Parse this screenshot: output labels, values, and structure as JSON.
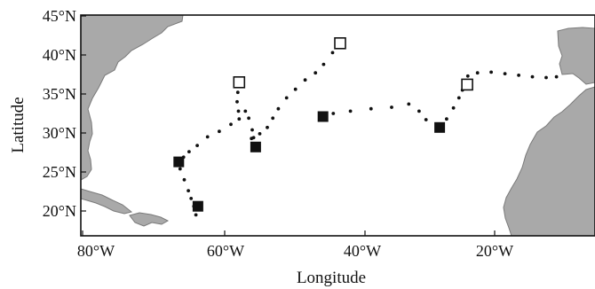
{
  "map": {
    "axes": {
      "x_title": "Longitude",
      "y_title": "Latitude",
      "x_ticks": [
        {
          "value": -80,
          "label": "80°W"
        },
        {
          "value": -60,
          "label": "60°W"
        },
        {
          "value": -40,
          "label": "40°W"
        },
        {
          "value": -20,
          "label": "20°W"
        }
      ],
      "y_ticks": [
        {
          "value": 20,
          "label": "20°N"
        },
        {
          "value": 25,
          "label": "25°N"
        },
        {
          "value": 30,
          "label": "30°N"
        },
        {
          "value": 35,
          "label": "35°N"
        },
        {
          "value": 40,
          "label": "40°N"
        },
        {
          "value": 45,
          "label": "45°N"
        }
      ],
      "lon_range": [
        -80,
        -10
      ],
      "lat_range": [
        17,
        45
      ]
    },
    "colors": {
      "land": "#a9a9a9",
      "coast": "#7a7a7a",
      "sea": "#ffffff",
      "track": "#111111",
      "marker": "#111111"
    },
    "track_a": [
      [
        -63.5,
        19.5
      ],
      [
        -63.8,
        20.6
      ],
      [
        -64.2,
        21.6
      ],
      [
        -64.6,
        22.6
      ],
      [
        -65.2,
        24.0
      ],
      [
        -65.8,
        25.4
      ],
      [
        -66.2,
        26.3
      ],
      [
        -65.3,
        26.9
      ],
      [
        -64.5,
        27.6
      ],
      [
        -63.3,
        28.4
      ],
      [
        -61.8,
        29.5
      ],
      [
        -60.1,
        30.2
      ],
      [
        -58.4,
        31.1
      ],
      [
        -57.2,
        31.8
      ],
      [
        -56.3,
        32.8
      ],
      [
        -55.8,
        31.9
      ],
      [
        -55.3,
        30.4
      ],
      [
        -55.1,
        29.4
      ],
      [
        -54.6,
        28.2
      ]
    ],
    "track_b": [
      [
        -55.4,
        29.3
      ],
      [
        -54.2,
        29.9
      ],
      [
        -53.1,
        30.7
      ],
      [
        -52.3,
        31.9
      ],
      [
        -51.5,
        33.1
      ],
      [
        -50.3,
        34.5
      ],
      [
        -49.0,
        35.6
      ],
      [
        -47.6,
        36.8
      ],
      [
        -46.1,
        37.7
      ],
      [
        -44.9,
        38.8
      ],
      [
        -43.6,
        40.3
      ],
      [
        -42.5,
        41.5
      ]
    ],
    "track_c": [
      [
        -45.0,
        32.2
      ],
      [
        -43.5,
        32.5
      ],
      [
        -41.0,
        32.8
      ],
      [
        -38.0,
        33.1
      ],
      [
        -35.0,
        33.3
      ],
      [
        -32.5,
        33.7
      ],
      [
        -31.0,
        32.8
      ],
      [
        -30.0,
        31.7
      ],
      [
        -28.0,
        30.7
      ],
      [
        -27.0,
        31.8
      ],
      [
        -26.0,
        33.2
      ],
      [
        -25.2,
        34.5
      ],
      [
        -24.7,
        35.5
      ],
      [
        -23.9,
        37.3
      ],
      [
        -22.5,
        37.7
      ],
      [
        -20.5,
        37.8
      ],
      [
        -18.5,
        37.6
      ],
      [
        -16.5,
        37.4
      ],
      [
        -14.5,
        37.2
      ],
      [
        -12.5,
        37.1
      ],
      [
        -11.0,
        37.2
      ]
    ],
    "track_d": [
      [
        -57.2,
        36.5
      ],
      [
        -57.4,
        35.2
      ],
      [
        -57.5,
        34.0
      ],
      [
        -57.3,
        32.8
      ]
    ],
    "markers_filled": [
      {
        "lon": -66.0,
        "lat": 26.3
      },
      {
        "lon": -63.2,
        "lat": 20.6
      },
      {
        "lon": -54.8,
        "lat": 28.2
      },
      {
        "lon": -45.0,
        "lat": 32.1
      },
      {
        "lon": -28.0,
        "lat": 30.7
      }
    ],
    "markers_open": [
      {
        "lon": -57.2,
        "lat": 36.5
      },
      {
        "lon": -42.5,
        "lat": 41.5
      },
      {
        "lon": -24.0,
        "lat": 36.2
      }
    ]
  }
}
